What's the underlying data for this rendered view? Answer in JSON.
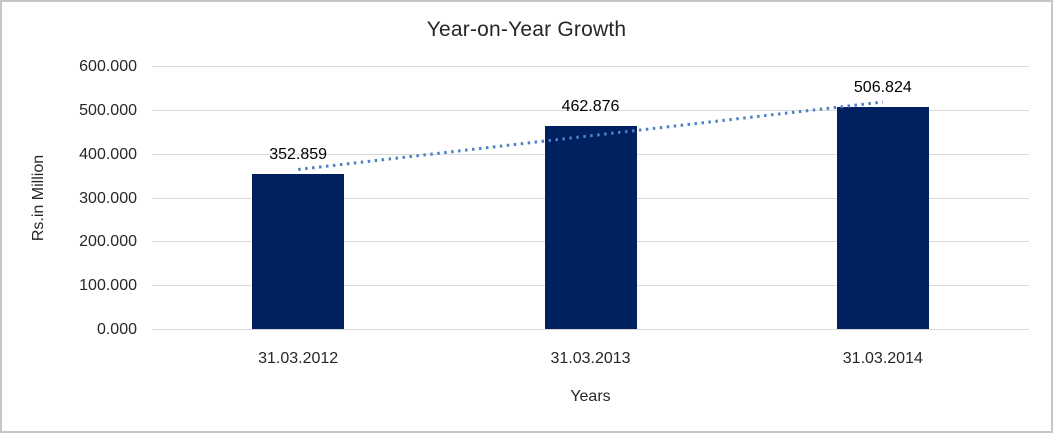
{
  "chart_data": {
    "type": "bar",
    "title": "Year-on-Year Growth",
    "categories": [
      "31.03.2012",
      "31.03.2013",
      "31.03.2014"
    ],
    "values": [
      352.859,
      462.876,
      506.824
    ],
    "value_labels": [
      "352.859",
      "462.876",
      "506.824"
    ],
    "xlabel": "Years",
    "ylabel": "Rs.in Million",
    "ylim": [
      0,
      600
    ],
    "ytick_step": 100,
    "ytick_labels": [
      "0.000",
      "100.000",
      "200.000",
      "300.000",
      "400.000",
      "500.000",
      "600.000"
    ],
    "grid": true,
    "legend_position": "none",
    "bar_color": "#002060",
    "gridline_color": "#d9d9d9",
    "trendline": {
      "type": "linear",
      "style": "dotted",
      "color": "#4a82c4",
      "spans": "first-to-last-category"
    }
  }
}
